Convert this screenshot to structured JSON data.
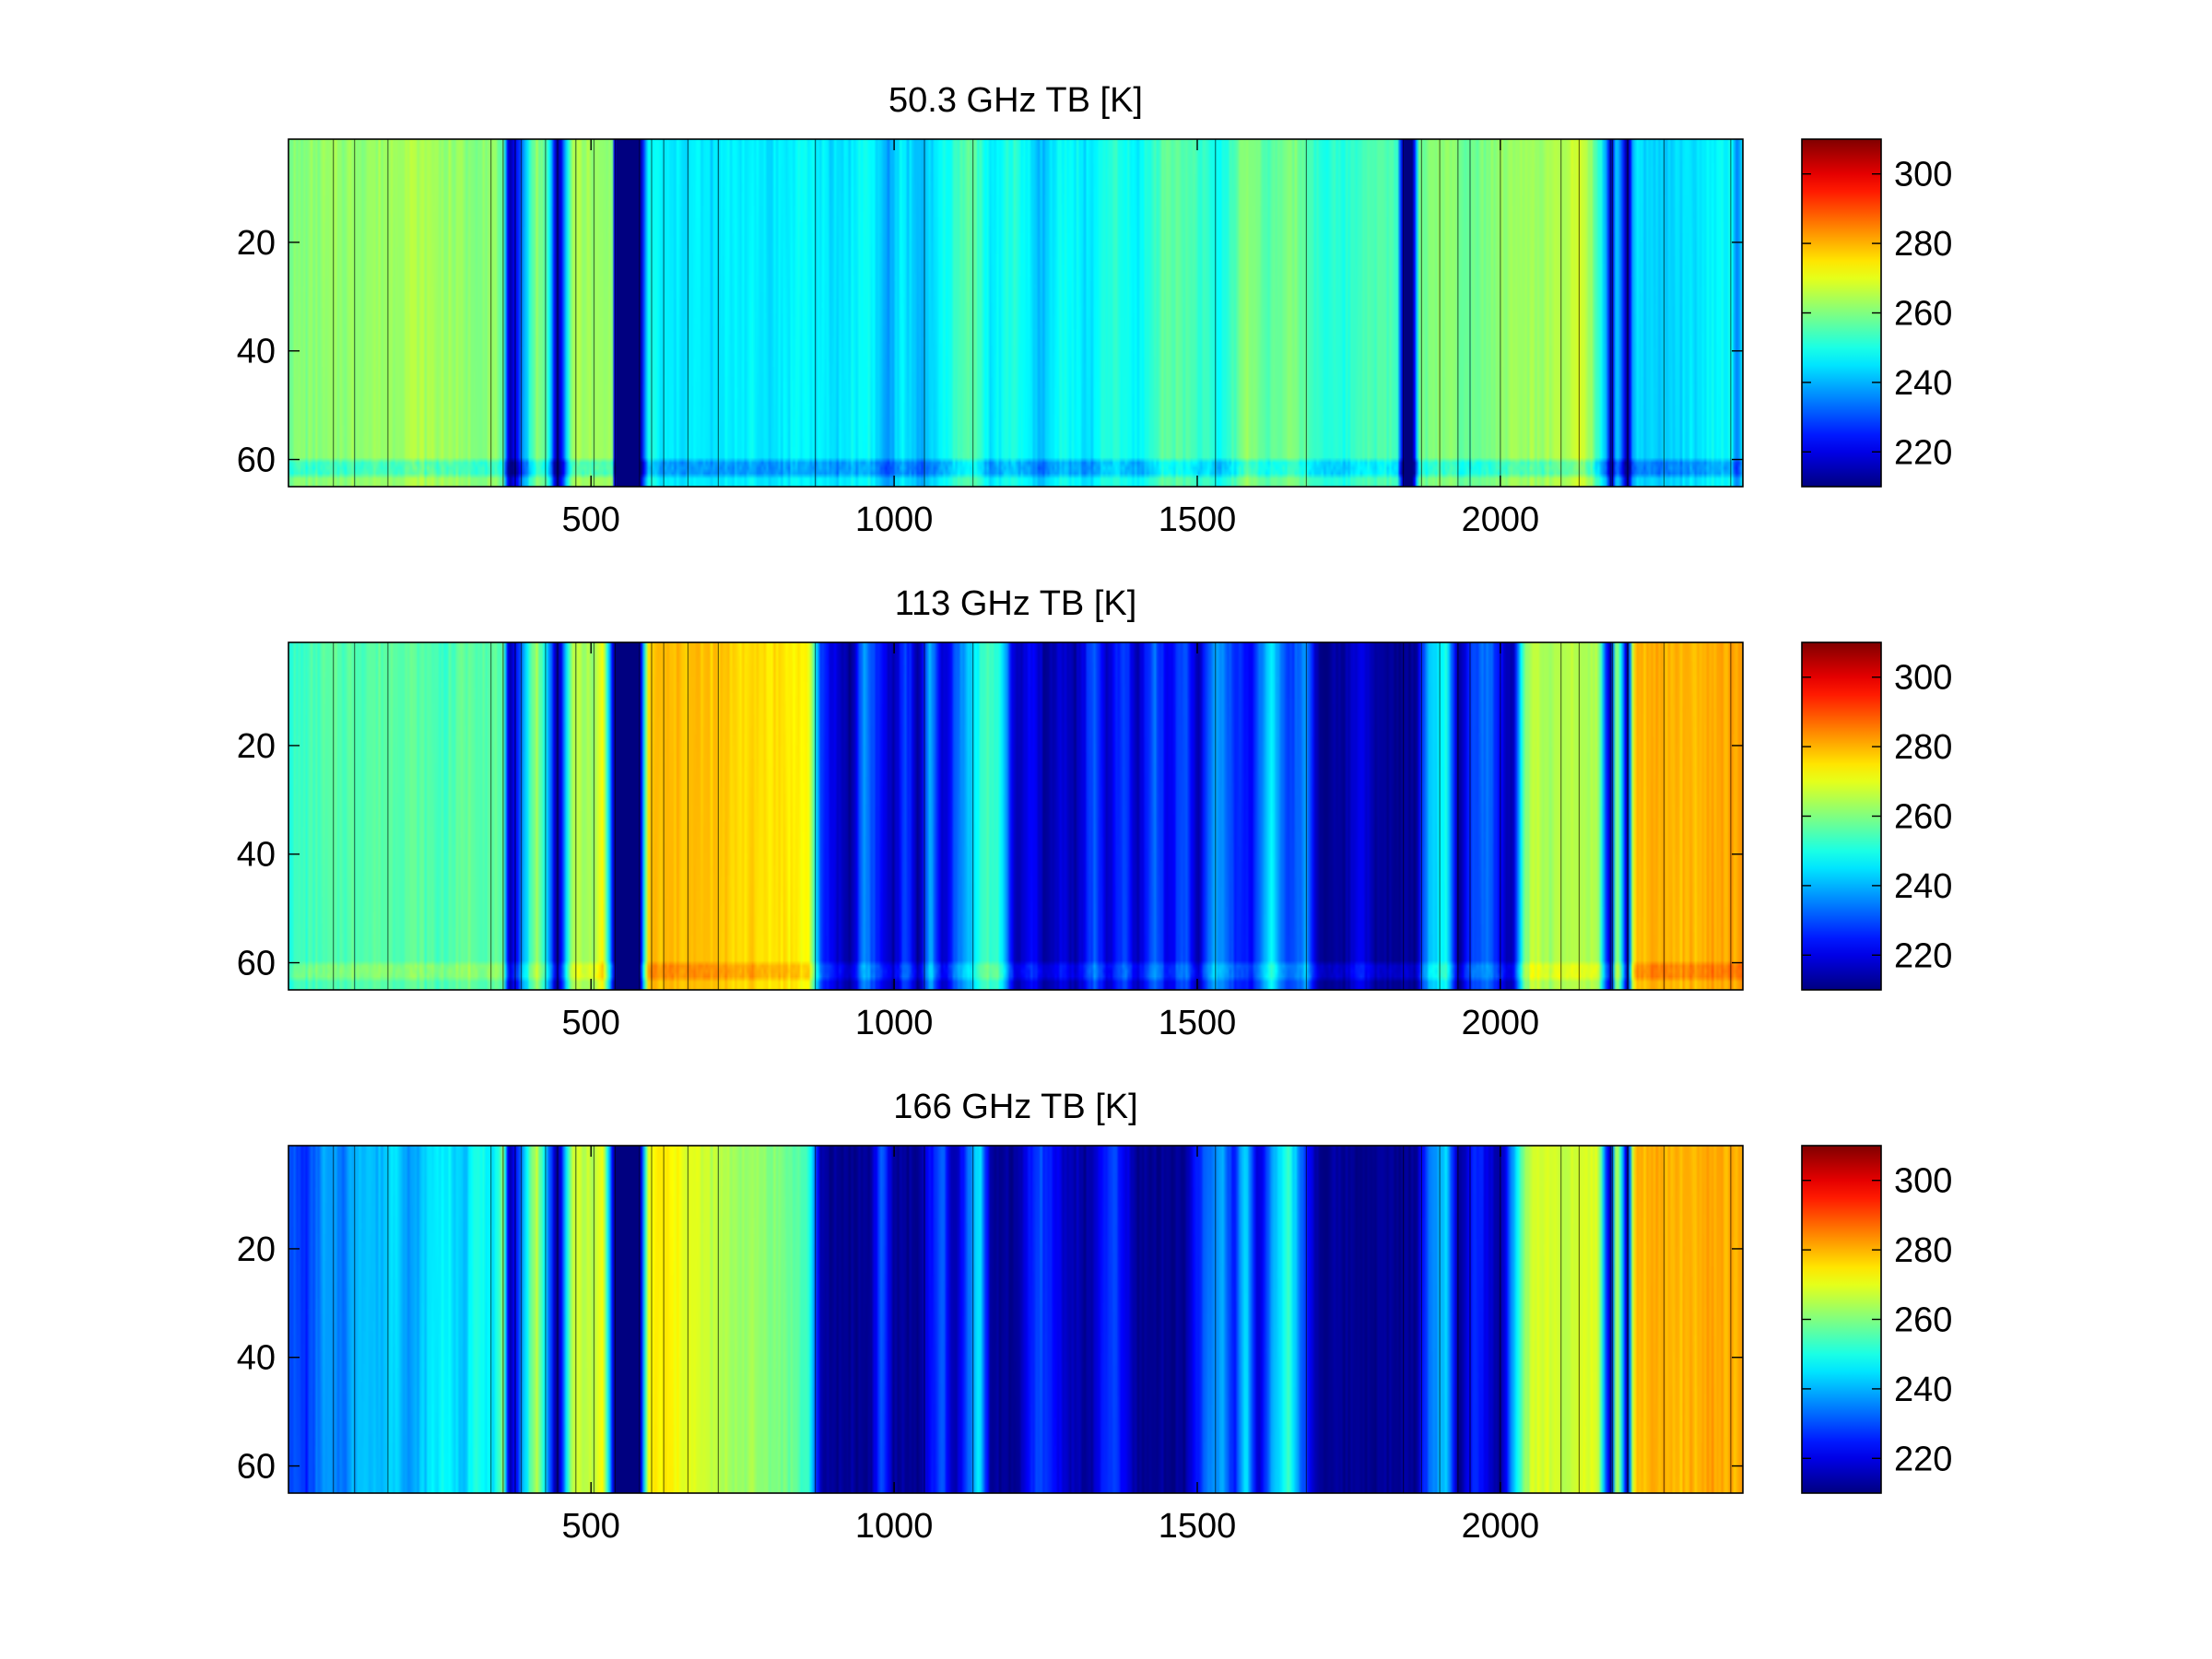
{
  "chart_data": [
    {
      "type": "heatmap",
      "title": "50.3 GHz TB [K]",
      "xlabel": "",
      "ylabel": "",
      "xlim": [
        1,
        2400
      ],
      "ylim": [
        1,
        65
      ],
      "x_ticks": [
        500,
        1000,
        1500,
        2000
      ],
      "y_ticks": [
        20,
        40,
        60
      ],
      "y_reversed": true,
      "colormap": "jet",
      "clim": [
        210,
        310
      ],
      "colorbar_ticks": [
        220,
        240,
        260,
        280,
        300
      ],
      "column_profile": [
        [
          1,
          260
        ],
        [
          100,
          262
        ],
        [
          170,
          263
        ],
        [
          200,
          265
        ],
        [
          260,
          263
        ],
        [
          300,
          261
        ],
        [
          340,
          262
        ],
        [
          355,
          257
        ],
        [
          365,
          210
        ],
        [
          410,
          263
        ],
        [
          430,
          252
        ],
        [
          445,
          210
        ],
        [
          470,
          265
        ],
        [
          505,
          262
        ],
        [
          535,
          262
        ],
        [
          540,
          210
        ],
        [
          580,
          210
        ],
        [
          595,
          250
        ],
        [
          620,
          245
        ],
        [
          680,
          246
        ],
        [
          700,
          244
        ],
        [
          740,
          247
        ],
        [
          800,
          245
        ],
        [
          850,
          248
        ],
        [
          900,
          244
        ],
        [
          960,
          249
        ],
        [
          990,
          237
        ],
        [
          1010,
          246
        ],
        [
          1050,
          240
        ],
        [
          1090,
          250
        ],
        [
          1130,
          258
        ],
        [
          1160,
          245
        ],
        [
          1200,
          252
        ],
        [
          1240,
          240
        ],
        [
          1280,
          250
        ],
        [
          1320,
          244
        ],
        [
          1360,
          252
        ],
        [
          1400,
          246
        ],
        [
          1450,
          258
        ],
        [
          1490,
          255
        ],
        [
          1540,
          248
        ],
        [
          1580,
          262
        ],
        [
          1620,
          256
        ],
        [
          1660,
          260
        ],
        [
          1700,
          252
        ],
        [
          1740,
          250
        ],
        [
          1780,
          256
        ],
        [
          1830,
          254
        ],
        [
          1840,
          210
        ],
        [
          1855,
          210
        ],
        [
          1865,
          258
        ],
        [
          1900,
          262
        ],
        [
          1950,
          258
        ],
        [
          2000,
          262
        ],
        [
          2050,
          263
        ],
        [
          2100,
          264
        ],
        [
          2130,
          268
        ],
        [
          2150,
          262
        ],
        [
          2175,
          240
        ],
        [
          2182,
          210
        ],
        [
          2192,
          246
        ],
        [
          2210,
          210
        ],
        [
          2220,
          244
        ],
        [
          2260,
          242
        ],
        [
          2300,
          244
        ],
        [
          2340,
          246
        ],
        [
          2380,
          248
        ],
        [
          2392,
          235
        ],
        [
          2400,
          248
        ]
      ],
      "row_effects": [
        {
          "rows": [
            61,
            63
          ],
          "delta": -10
        }
      ]
    },
    {
      "type": "heatmap",
      "title": "113 GHz TB [K]",
      "xlabel": "",
      "ylabel": "",
      "xlim": [
        1,
        2400
      ],
      "ylim": [
        1,
        65
      ],
      "x_ticks": [
        500,
        1000,
        1500,
        2000
      ],
      "y_ticks": [
        20,
        40,
        60
      ],
      "y_reversed": true,
      "colormap": "jet",
      "clim": [
        210,
        310
      ],
      "colorbar_ticks": [
        220,
        240,
        260,
        280,
        300
      ],
      "column_profile": [
        [
          1,
          252
        ],
        [
          60,
          255
        ],
        [
          120,
          256
        ],
        [
          200,
          257
        ],
        [
          260,
          254
        ],
        [
          300,
          258
        ],
        [
          330,
          256
        ],
        [
          355,
          257
        ],
        [
          365,
          210
        ],
        [
          410,
          265
        ],
        [
          430,
          240
        ],
        [
          445,
          210
        ],
        [
          470,
          266
        ],
        [
          505,
          262
        ],
        [
          520,
          273
        ],
        [
          540,
          210
        ],
        [
          580,
          210
        ],
        [
          595,
          278
        ],
        [
          650,
          279
        ],
        [
          700,
          278
        ],
        [
          760,
          276
        ],
        [
          820,
          275
        ],
        [
          860,
          272
        ],
        [
          880,
          226
        ],
        [
          900,
          220
        ],
        [
          930,
          212
        ],
        [
          950,
          238
        ],
        [
          980,
          222
        ],
        [
          1000,
          214
        ],
        [
          1020,
          230
        ],
        [
          1040,
          212
        ],
        [
          1060,
          240
        ],
        [
          1080,
          215
        ],
        [
          1100,
          230
        ],
        [
          1120,
          240
        ],
        [
          1150,
          255
        ],
        [
          1175,
          250
        ],
        [
          1200,
          215
        ],
        [
          1230,
          222
        ],
        [
          1250,
          212
        ],
        [
          1280,
          220
        ],
        [
          1300,
          213
        ],
        [
          1330,
          232
        ],
        [
          1350,
          216
        ],
        [
          1380,
          230
        ],
        [
          1400,
          214
        ],
        [
          1430,
          234
        ],
        [
          1450,
          220
        ],
        [
          1480,
          232
        ],
        [
          1500,
          214
        ],
        [
          1530,
          240
        ],
        [
          1560,
          228
        ],
        [
          1590,
          222
        ],
        [
          1620,
          248
        ],
        [
          1650,
          226
        ],
        [
          1680,
          238
        ],
        [
          1700,
          212
        ],
        [
          1740,
          212
        ],
        [
          1770,
          222
        ],
        [
          1800,
          212
        ],
        [
          1840,
          212
        ],
        [
          1860,
          212
        ],
        [
          1880,
          240
        ],
        [
          1910,
          250
        ],
        [
          1930,
          212
        ],
        [
          1950,
          228
        ],
        [
          1980,
          235
        ],
        [
          2000,
          222
        ],
        [
          2020,
          212
        ],
        [
          2040,
          260
        ],
        [
          2060,
          268
        ],
        [
          2080,
          262
        ],
        [
          2110,
          266
        ],
        [
          2140,
          263
        ],
        [
          2160,
          266
        ],
        [
          2182,
          210
        ],
        [
          2192,
          268
        ],
        [
          2210,
          210
        ],
        [
          2220,
          278
        ],
        [
          2260,
          280
        ],
        [
          2300,
          279
        ],
        [
          2340,
          280
        ],
        [
          2380,
          281
        ],
        [
          2400,
          283
        ]
      ],
      "row_effects": [
        {
          "rows": [
            61,
            63
          ],
          "delta": 6
        }
      ]
    },
    {
      "type": "heatmap",
      "title": "166 GHz TB [K]",
      "xlabel": "",
      "ylabel": "",
      "xlim": [
        1,
        2400
      ],
      "ylim": [
        1,
        65
      ],
      "x_ticks": [
        500,
        1000,
        1500,
        2000
      ],
      "y_ticks": [
        20,
        40,
        60
      ],
      "y_reversed": true,
      "colormap": "jet",
      "clim": [
        210,
        310
      ],
      "colorbar_ticks": [
        220,
        240,
        260,
        280,
        300
      ],
      "column_profile": [
        [
          1,
          232
        ],
        [
          30,
          226
        ],
        [
          60,
          238
        ],
        [
          90,
          234
        ],
        [
          120,
          243
        ],
        [
          150,
          240
        ],
        [
          180,
          246
        ],
        [
          200,
          236
        ],
        [
          230,
          244
        ],
        [
          260,
          248
        ],
        [
          290,
          240
        ],
        [
          310,
          253
        ],
        [
          340,
          244
        ],
        [
          355,
          262
        ],
        [
          365,
          210
        ],
        [
          410,
          268
        ],
        [
          430,
          235
        ],
        [
          445,
          210
        ],
        [
          470,
          268
        ],
        [
          505,
          265
        ],
        [
          520,
          272
        ],
        [
          540,
          210
        ],
        [
          580,
          210
        ],
        [
          595,
          272
        ],
        [
          620,
          274
        ],
        [
          680,
          268
        ],
        [
          720,
          264
        ],
        [
          780,
          262
        ],
        [
          830,
          258
        ],
        [
          860,
          252
        ],
        [
          880,
          212
        ],
        [
          920,
          212
        ],
        [
          960,
          212
        ],
        [
          980,
          232
        ],
        [
          1000,
          212
        ],
        [
          1040,
          212
        ],
        [
          1080,
          232
        ],
        [
          1100,
          212
        ],
        [
          1140,
          248
        ],
        [
          1160,
          212
        ],
        [
          1200,
          212
        ],
        [
          1240,
          230
        ],
        [
          1280,
          218
        ],
        [
          1320,
          212
        ],
        [
          1360,
          230
        ],
        [
          1400,
          212
        ],
        [
          1440,
          212
        ],
        [
          1480,
          212
        ],
        [
          1500,
          226
        ],
        [
          1540,
          240
        ],
        [
          1560,
          224
        ],
        [
          1580,
          246
        ],
        [
          1600,
          216
        ],
        [
          1620,
          236
        ],
        [
          1650,
          252
        ],
        [
          1680,
          226
        ],
        [
          1700,
          212
        ],
        [
          1760,
          212
        ],
        [
          1800,
          212
        ],
        [
          1840,
          212
        ],
        [
          1860,
          212
        ],
        [
          1880,
          232
        ],
        [
          1910,
          244
        ],
        [
          1930,
          212
        ],
        [
          1960,
          228
        ],
        [
          2000,
          212
        ],
        [
          2040,
          262
        ],
        [
          2060,
          270
        ],
        [
          2100,
          266
        ],
        [
          2140,
          268
        ],
        [
          2160,
          270
        ],
        [
          2182,
          210
        ],
        [
          2192,
          272
        ],
        [
          2210,
          210
        ],
        [
          2220,
          278
        ],
        [
          2260,
          280
        ],
        [
          2300,
          279
        ],
        [
          2340,
          281
        ],
        [
          2380,
          280
        ],
        [
          2400,
          282
        ]
      ],
      "row_effects": []
    }
  ]
}
